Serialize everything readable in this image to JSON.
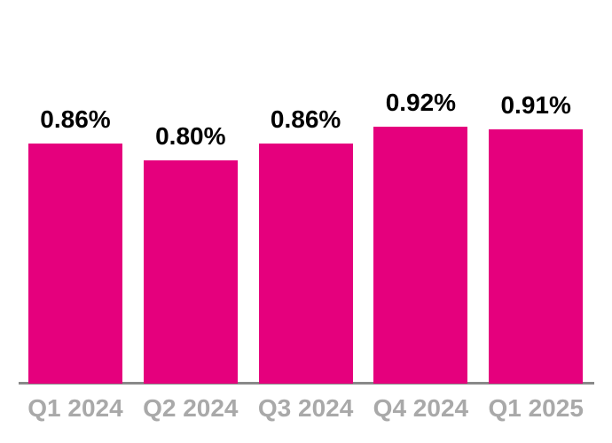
{
  "chart_data": {
    "type": "bar",
    "title": "",
    "xlabel": "",
    "ylabel": "",
    "categories": [
      "Q1 2024",
      "Q2 2024",
      "Q3 2024",
      "Q4 2024",
      "Q1 2025"
    ],
    "values": [
      0.86,
      0.8,
      0.86,
      0.92,
      0.91
    ],
    "data_labels": [
      "0.86%",
      "0.80%",
      "0.86%",
      "0.92%",
      "0.91%"
    ],
    "ylim": [
      0,
      1.0
    ],
    "grid": false,
    "legend": false,
    "colors": {
      "bar": "#E5007D",
      "value_label": "#000000",
      "category_label": "#A9A9A9",
      "axis_line": "#898989",
      "background": "#FFFFFF"
    }
  }
}
